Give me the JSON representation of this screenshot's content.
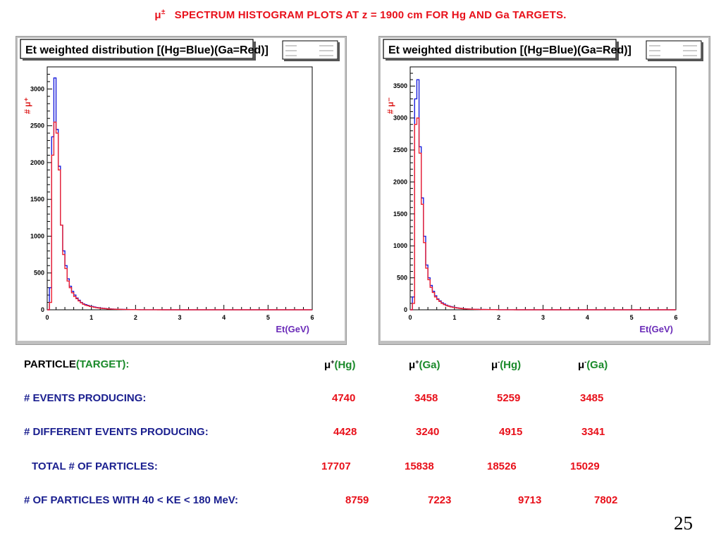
{
  "slide": {
    "title_mu": "μ",
    "title_sup": "±",
    "title_text": "SPECTRUM HISTOGRAM PLOTS AT z = 1900 cm  FOR Hg AND Ga  TARGETS.",
    "page_number": "25"
  },
  "colors": {
    "hg": "#1b1fdc",
    "ga": "#ef2030",
    "title": "#e8101a",
    "label": "#1a1f8f",
    "target": "#1a8a2a"
  },
  "chart_data": [
    {
      "type": "line",
      "title": "Et weighted distribution [(Hg=Blue)(Ga=Red)]",
      "ylabel": "# μ⁺",
      "xlabel": "Et(GeV)",
      "xlim": [
        0,
        6
      ],
      "ylim": [
        0,
        3300
      ],
      "xticks": [
        "0",
        "1",
        "2",
        "3",
        "4",
        "5",
        "6"
      ],
      "yticks": [
        "0",
        "500",
        "1000",
        "1500",
        "2000",
        "2500",
        "3000"
      ],
      "ytick_values": [
        0,
        500,
        1000,
        1500,
        2000,
        2500,
        3000
      ],
      "bin_width": 0.05,
      "series": [
        {
          "name": "Hg",
          "color": "#1b1fdc",
          "values": [
            0,
            300,
            2350,
            3150,
            2450,
            1950,
            1150,
            800,
            600,
            420,
            320,
            250,
            200,
            160,
            130,
            100,
            80,
            70,
            60,
            50,
            45,
            38,
            32,
            27,
            23,
            20,
            17,
            14,
            12,
            10,
            9,
            8,
            7,
            6,
            5,
            4,
            4,
            3,
            3,
            2,
            2,
            2,
            1,
            1,
            1,
            1,
            1,
            1,
            1,
            1,
            1,
            1,
            0,
            0,
            0,
            0,
            0,
            0,
            0,
            0
          ]
        },
        {
          "name": "Ga",
          "color": "#ef2030",
          "values": [
            0,
            100,
            2100,
            2550,
            2400,
            1900,
            1150,
            750,
            560,
            390,
            300,
            230,
            180,
            150,
            120,
            95,
            75,
            62,
            55,
            45,
            40,
            33,
            28,
            24,
            20,
            18,
            15,
            12,
            10,
            9,
            8,
            7,
            6,
            5,
            4,
            4,
            3,
            3,
            2,
            2,
            2,
            1,
            1,
            1,
            1,
            1,
            1,
            1,
            1,
            1,
            0,
            0,
            0,
            0,
            0,
            0,
            0,
            0,
            0,
            0
          ]
        }
      ]
    },
    {
      "type": "line",
      "title": "Et weighted distribution [(Hg=Blue)(Ga=Red)]",
      "ylabel": "# μ⁻",
      "xlabel": "Et(GeV)",
      "xlim": [
        0,
        6
      ],
      "ylim": [
        0,
        3800
      ],
      "xticks": [
        "0",
        "1",
        "2",
        "3",
        "4",
        "5",
        "6"
      ],
      "yticks": [
        "0",
        "500",
        "1000",
        "1500",
        "2000",
        "2500",
        "3000",
        "3500"
      ],
      "ytick_values": [
        0,
        500,
        1000,
        1500,
        2000,
        2500,
        3000,
        3500
      ],
      "bin_width": 0.05,
      "series": [
        {
          "name": "Hg",
          "color": "#1b1fdc",
          "values": [
            0,
            200,
            3300,
            3600,
            2550,
            1750,
            1150,
            700,
            500,
            380,
            290,
            220,
            170,
            140,
            110,
            90,
            72,
            60,
            50,
            42,
            35,
            29,
            24,
            20,
            17,
            14,
            12,
            10,
            9,
            8,
            7,
            6,
            5,
            4,
            4,
            3,
            3,
            2,
            2,
            2,
            1,
            1,
            1,
            1,
            1,
            1,
            1,
            1,
            0,
            0,
            0,
            0,
            0,
            0,
            0,
            0,
            0,
            0,
            0,
            0
          ]
        },
        {
          "name": "Ga",
          "color": "#ef2030",
          "values": [
            0,
            100,
            2900,
            3000,
            2450,
            1650,
            1050,
            650,
            470,
            350,
            270,
            200,
            160,
            130,
            100,
            80,
            65,
            55,
            45,
            38,
            32,
            27,
            22,
            18,
            15,
            13,
            11,
            9,
            8,
            7,
            6,
            5,
            4,
            4,
            3,
            3,
            2,
            2,
            2,
            1,
            1,
            1,
            1,
            1,
            1,
            1,
            1,
            0,
            0,
            0,
            0,
            0,
            0,
            0,
            0,
            0,
            0,
            0,
            0,
            0
          ]
        }
      ]
    }
  ],
  "table": {
    "header_label": "PARTICLE",
    "header_target": "(TARGET):",
    "columns": [
      {
        "mu": "μ",
        "sup": "+",
        "target": "(Hg)"
      },
      {
        "mu": "μ",
        "sup": "+",
        "target": "(Ga)"
      },
      {
        "mu": "μ",
        "sup": "-",
        "target": "(Hg)"
      },
      {
        "mu": "μ",
        "sup": "-",
        "target": "(Ga)"
      }
    ],
    "rows": [
      {
        "label": "# EVENTS PRODUCING:",
        "values": [
          "4740",
          "3458",
          "5259",
          "3485"
        ]
      },
      {
        "label": "# DIFFERENT EVENTS  PRODUCING:",
        "values": [
          "4428",
          "3240",
          "4915",
          "3341"
        ]
      },
      {
        "label": "TOTAL # OF PARTICLES:",
        "values": [
          "17707",
          "15838",
          "18526",
          "15029"
        ]
      },
      {
        "label": "# OF PARTICLES WITH 40 < KE < 180 MeV:",
        "values": [
          "8759",
          "7223",
          "9713",
          "7802"
        ]
      }
    ]
  }
}
